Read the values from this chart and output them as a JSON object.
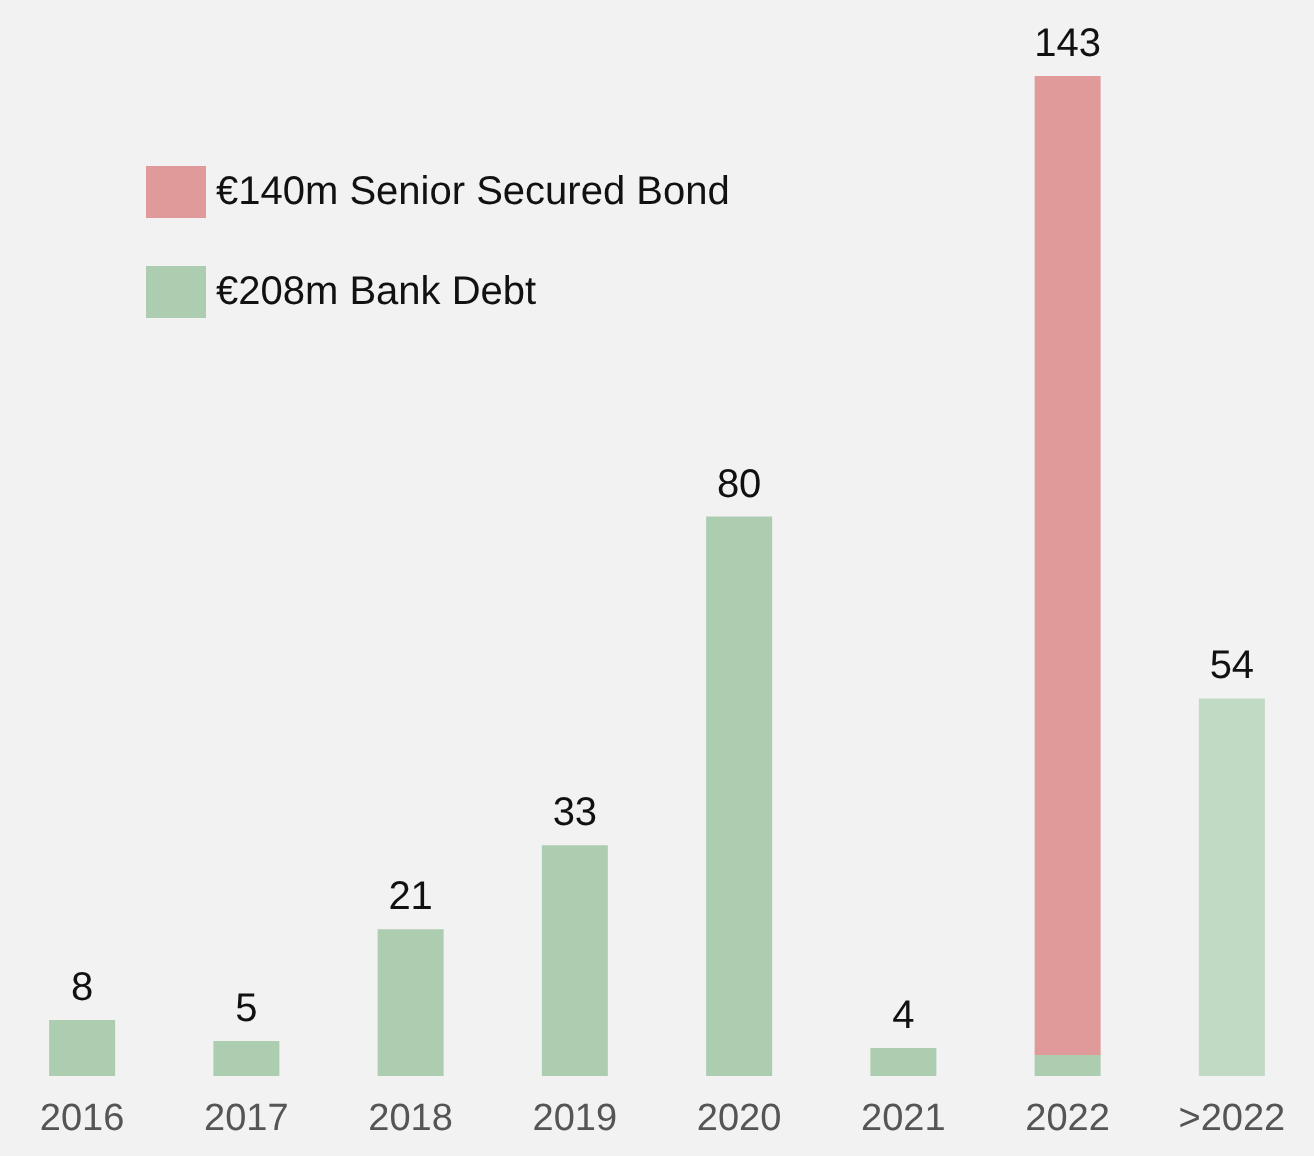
{
  "chart_data": {
    "type": "bar",
    "stacked": true,
    "legend": "top left",
    "categories": [
      "2016",
      "2017",
      "2018",
      "2019",
      "2020",
      "2021",
      "2022",
      ">2022"
    ],
    "series": [
      {
        "name": "€208m Bank Debt",
        "color": "#adcdb1",
        "colors": [
          "#adcdb1",
          "#adcdb1",
          "#adcdb1",
          "#adcdb1",
          "#adcdb1",
          "#adcdb1",
          "#adcdb1",
          "#c1dac3"
        ],
        "values": [
          8,
          5,
          21,
          33,
          80,
          4,
          3,
          54
        ],
        "value_labels": [
          "8",
          "5",
          "21",
          "33",
          "80",
          "4",
          null,
          "54"
        ]
      },
      {
        "name": "€140m Senior Secured Bond",
        "color": "#e09a9a",
        "values": [
          null,
          null,
          null,
          null,
          null,
          null,
          140,
          null
        ]
      }
    ],
    "totals": [
      null,
      null,
      null,
      null,
      null,
      null,
      "143",
      null
    ]
  }
}
